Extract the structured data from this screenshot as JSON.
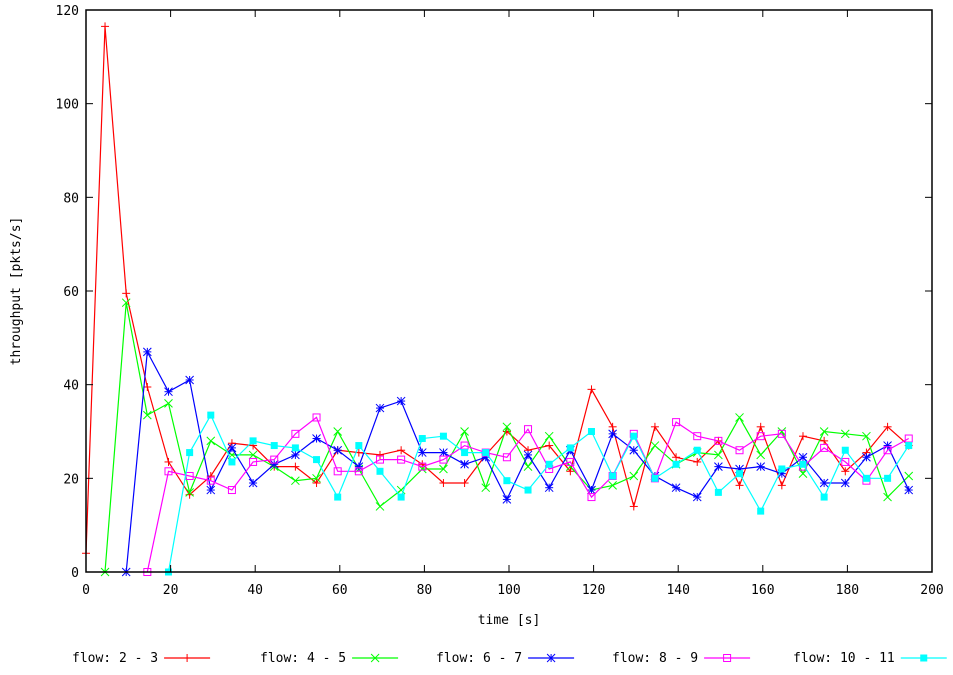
{
  "chart_data": {
    "type": "line",
    "xlabel": "time [s]",
    "ylabel": "throughput [pkts/s]",
    "xlim": [
      0,
      200
    ],
    "ylim": [
      0,
      120
    ],
    "xticks": [
      0,
      20,
      40,
      60,
      80,
      100,
      120,
      140,
      160,
      180,
      200
    ],
    "yticks": [
      0,
      20,
      40,
      60,
      80,
      100,
      120
    ],
    "grid": false,
    "legend_position": "bottom",
    "series": [
      {
        "name": "flow: 2 - 3",
        "color": "#ff0000",
        "marker": "plus",
        "x": [
          0,
          4.5,
          9.5,
          14.5,
          19.5,
          24.5,
          29.5,
          34.5,
          39.5,
          44.5,
          49.5,
          54.5,
          59.5,
          64.5,
          69.5,
          74.5,
          79.5,
          84.5,
          89.5,
          94.5,
          99.5,
          104.5,
          109.5,
          114.5,
          119.5,
          124.5,
          129.5,
          134.5,
          139.5,
          144.5,
          149.5,
          154.5,
          159.5,
          164.5,
          169.5,
          174.5,
          179.5,
          184.5,
          189.5,
          194.5
        ],
        "y": [
          4,
          116.5,
          59.5,
          39.5,
          23.5,
          16.5,
          20.5,
          27.5,
          27,
          22.5,
          22.5,
          19,
          26,
          25.5,
          25,
          26,
          23,
          19,
          19,
          25,
          30,
          26,
          27,
          21.5,
          39,
          31,
          14,
          31,
          24.5,
          23.5,
          28,
          18.5,
          31,
          18.5,
          29,
          28,
          21.5,
          25.5,
          31,
          27
        ]
      },
      {
        "name": "flow: 4 - 5",
        "color": "#00ff00",
        "marker": "x",
        "x": [
          4.5,
          9.5,
          14.5,
          19.5,
          24.5,
          29.5,
          34.5,
          39.5,
          44.5,
          49.5,
          54.5,
          59.5,
          64.5,
          69.5,
          74.5,
          79.5,
          84.5,
          89.5,
          94.5,
          99.5,
          104.5,
          109.5,
          114.5,
          119.5,
          124.5,
          129.5,
          134.5,
          139.5,
          144.5,
          149.5,
          154.5,
          159.5,
          164.5,
          169.5,
          174.5,
          179.5,
          184.5,
          189.5,
          194.5
        ],
        "y": [
          0,
          57.5,
          33.5,
          36,
          17,
          28,
          25,
          25,
          22.5,
          19.5,
          20,
          30,
          22,
          14,
          17.5,
          22,
          22,
          30,
          18,
          31,
          22.5,
          29,
          22.5,
          17.5,
          18.5,
          20.5,
          27,
          23,
          25.5,
          25,
          33,
          25,
          30,
          21,
          30,
          29.5,
          29,
          16,
          20.5
        ]
      },
      {
        "name": "flow: 6 - 7",
        "color": "#0000ff",
        "marker": "star",
        "x": [
          9.5,
          14.5,
          19.5,
          24.5,
          29.5,
          34.5,
          39.5,
          44.5,
          49.5,
          54.5,
          59.5,
          64.5,
          69.5,
          74.5,
          79.5,
          84.5,
          89.5,
          94.5,
          99.5,
          104.5,
          109.5,
          114.5,
          119.5,
          124.5,
          129.5,
          134.5,
          139.5,
          144.5,
          149.5,
          154.5,
          159.5,
          164.5,
          169.5,
          174.5,
          179.5,
          184.5,
          189.5,
          194.5
        ],
        "y": [
          0,
          47,
          38.5,
          41,
          17.5,
          26.5,
          19,
          23,
          25,
          28.5,
          26,
          22.5,
          35,
          36.5,
          25.5,
          25.5,
          23,
          24.5,
          15.5,
          25,
          18,
          26,
          17.5,
          29.5,
          26,
          20.5,
          18,
          16,
          22.5,
          22,
          22.5,
          21,
          24.5,
          19,
          19,
          24.5,
          27,
          17.5
        ]
      },
      {
        "name": "flow: 8 - 9",
        "color": "#ff00ff",
        "marker": "square",
        "x": [
          14.5,
          19.5,
          24.5,
          29.5,
          34.5,
          39.5,
          44.5,
          49.5,
          54.5,
          59.5,
          64.5,
          69.5,
          74.5,
          79.5,
          84.5,
          89.5,
          94.5,
          99.5,
          104.5,
          109.5,
          114.5,
          119.5,
          124.5,
          129.5,
          134.5,
          139.5,
          144.5,
          149.5,
          154.5,
          159.5,
          164.5,
          169.5,
          174.5,
          179.5,
          184.5,
          189.5,
          194.5
        ],
        "y": [
          0,
          21.5,
          20.5,
          19.5,
          17.5,
          23.5,
          24,
          29.5,
          33,
          21.5,
          21.5,
          24,
          24,
          22.5,
          24,
          27,
          25.5,
          24.5,
          30.5,
          22,
          23.5,
          16,
          20.5,
          29.5,
          20,
          32,
          29,
          28,
          26,
          29,
          29.5,
          22.5,
          26.5,
          23.5,
          19.5,
          26,
          28.5
        ]
      },
      {
        "name": "flow: 10 - 11",
        "color": "#00ffff",
        "marker": "filled-square",
        "x": [
          19.5,
          24.5,
          29.5,
          34.5,
          39.5,
          44.5,
          49.5,
          54.5,
          59.5,
          64.5,
          69.5,
          74.5,
          79.5,
          84.5,
          89.5,
          94.5,
          99.5,
          104.5,
          109.5,
          114.5,
          119.5,
          124.5,
          129.5,
          134.5,
          139.5,
          144.5,
          149.5,
          154.5,
          159.5,
          164.5,
          169.5,
          174.5,
          179.5,
          184.5,
          189.5,
          194.5
        ],
        "y": [
          0,
          25.5,
          33.5,
          23.5,
          28,
          27,
          26.5,
          24,
          16,
          27,
          21.5,
          16,
          28.5,
          29,
          25.5,
          25.5,
          19.5,
          17.5,
          23,
          26.5,
          30,
          20.5,
          29,
          20,
          23,
          26,
          17,
          21,
          13,
          22,
          23,
          16,
          26,
          20,
          20,
          27
        ]
      }
    ]
  }
}
